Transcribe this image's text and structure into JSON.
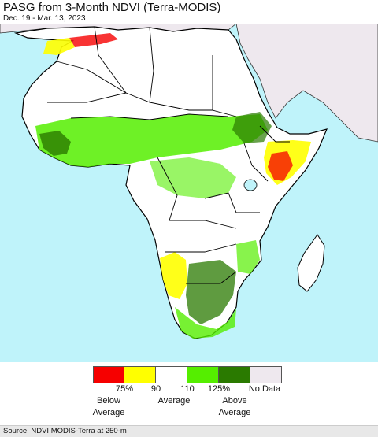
{
  "title": "PASG from 3-Month NDVI (Terra-MODIS)",
  "date_range": "Dec. 19 - Mar. 13, 2023",
  "legend": {
    "colors": [
      "#f60000",
      "#ffff00",
      "#ffffff",
      "#55ee00",
      "#2a7a00",
      "#eee8ee"
    ],
    "ticks": [
      "75%",
      "90",
      "110",
      "125%",
      "No Data"
    ],
    "categories": [
      {
        "line1": "Below",
        "line2": "Average"
      },
      {
        "line1": "Average",
        "line2": ""
      },
      {
        "line1": "Above",
        "line2": "Average"
      }
    ]
  },
  "source": "Source: NDVI MODIS-Terra at 250-m",
  "map_colors": {
    "ocean": "#bff3fa",
    "land": "#ffffff",
    "no_data": "#eee8ee",
    "border": "#000000"
  }
}
